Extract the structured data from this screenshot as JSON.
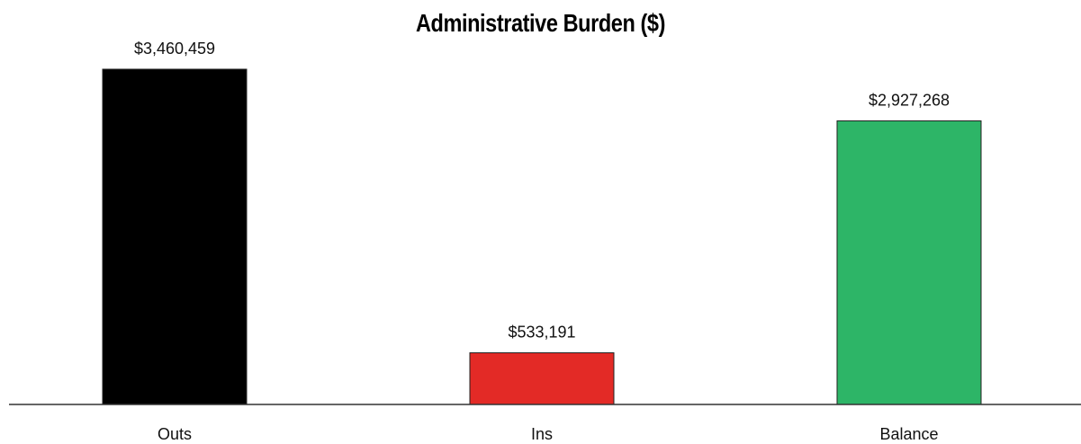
{
  "chart_data": {
    "type": "bar",
    "title": "Administrative Burden ($)",
    "xlabel": "",
    "ylabel": "",
    "categories": [
      "Outs",
      "Ins",
      "Balance"
    ],
    "values": [
      3460459,
      533191,
      2927268
    ],
    "value_labels": [
      "$3,460,459",
      "$533,191",
      "$2,927,268"
    ],
    "colors": [
      "#000000",
      "#e32a26",
      "#2db567"
    ],
    "ylim": [
      0,
      3460459
    ],
    "grid": false,
    "legend": "none"
  }
}
